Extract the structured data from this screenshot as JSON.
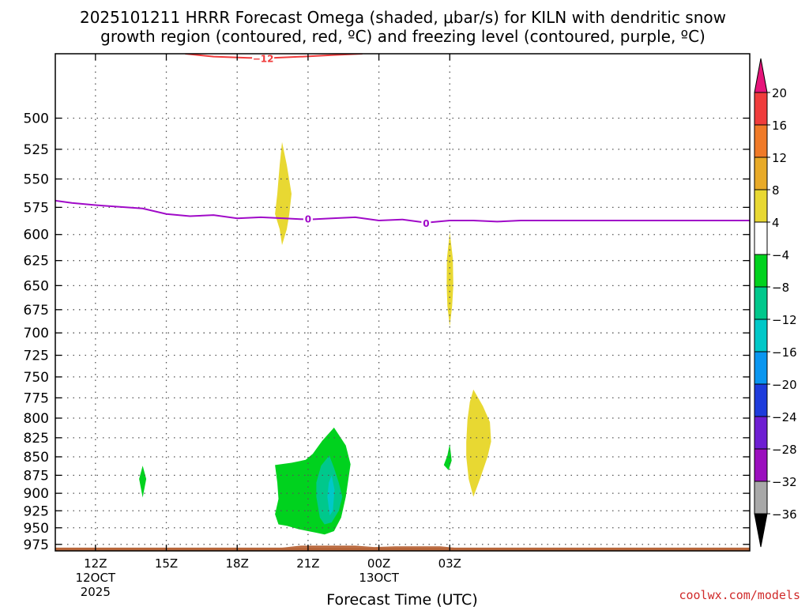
{
  "chart_data": {
    "type": "contour",
    "title_line1": "2025101211 HRRR Forecast Omega (shaded, μbar/s) for KILN with dendritic snow",
    "title_line2": "growth region (contoured, red, ºC) and freezing level (contoured, purple, ºC)",
    "xlabel": "Forecast Time (UTC)",
    "credit": "coolwx.com/models",
    "x_range_hours": [
      10.3,
      39.7
    ],
    "y_range_hPa": [
      452,
      985
    ],
    "y_ticks": [
      500,
      525,
      550,
      575,
      600,
      625,
      650,
      675,
      700,
      725,
      750,
      775,
      800,
      825,
      850,
      875,
      900,
      925,
      950,
      975
    ],
    "x_ticks": [
      {
        "hour": 12,
        "label": "12Z",
        "sub1": "12OCT",
        "sub2": "2025"
      },
      {
        "hour": 15,
        "label": "15Z",
        "sub1": "",
        "sub2": ""
      },
      {
        "hour": 18,
        "label": "18Z",
        "sub1": "",
        "sub2": ""
      },
      {
        "hour": 21,
        "label": "21Z",
        "sub1": "",
        "sub2": ""
      },
      {
        "hour": 24,
        "label": "00Z",
        "sub1": "13OCT",
        "sub2": ""
      },
      {
        "hour": 27,
        "label": "03Z",
        "sub1": "",
        "sub2": ""
      }
    ],
    "colorbar": {
      "labels": [
        "20",
        "16",
        "12",
        "8",
        "4",
        "−4",
        "−8",
        "−12",
        "−16",
        "−20",
        "−24",
        "−28",
        "−32",
        "−36"
      ],
      "colors": [
        "#f03c3c",
        "#f07a28",
        "#e8aa28",
        "#e8d832",
        "#ffffff",
        "#00d21e",
        "#00c88c",
        "#00c8c8",
        "#0a96f0",
        "#1e3cdc",
        "#6e1ed2",
        "#9b0fbe",
        "#a8a8a8"
      ],
      "top_arrow_color": "#e6147a",
      "bottom_arrow_color": "#000000"
    },
    "freezing_level": {
      "label": "0",
      "color": "#a00ac8",
      "points": [
        [
          10.3,
          569
        ],
        [
          11.0,
          571
        ],
        [
          12.0,
          573
        ],
        [
          14.0,
          576
        ],
        [
          15.0,
          581
        ],
        [
          16.0,
          583
        ],
        [
          17.0,
          582
        ],
        [
          18.0,
          585
        ],
        [
          19.0,
          584
        ],
        [
          20.0,
          585
        ],
        [
          21.0,
          586
        ],
        [
          22.0,
          585
        ],
        [
          23.0,
          584
        ],
        [
          24.0,
          587
        ],
        [
          25.0,
          586
        ],
        [
          26.0,
          589
        ],
        [
          27.0,
          587
        ],
        [
          28.0,
          587
        ],
        [
          29.0,
          588
        ],
        [
          30.0,
          587
        ],
        [
          39.7,
          587
        ]
      ],
      "label_points": [
        [
          21.0,
          585
        ],
        [
          26.0,
          589
        ]
      ]
    },
    "dgz_contour": {
      "label": "−12",
      "color": "#f03c3c",
      "points": [
        [
          15.8,
          452
        ],
        [
          17.0,
          454
        ],
        [
          18.5,
          455
        ],
        [
          19.5,
          455
        ],
        [
          20.8,
          454
        ],
        [
          22.0,
          453
        ],
        [
          23.3,
          452
        ]
      ],
      "label_point": [
        19.1,
        455
      ]
    },
    "omega_regions": [
      {
        "level": "4 to 8",
        "color": "#e8d832",
        "points": [
          [
            19.9,
            519
          ],
          [
            20.1,
            538
          ],
          [
            20.3,
            563
          ],
          [
            20.2,
            582
          ],
          [
            20.1,
            595
          ],
          [
            19.9,
            610
          ],
          [
            19.8,
            595
          ],
          [
            19.6,
            581
          ],
          [
            19.7,
            563
          ],
          [
            19.8,
            538
          ]
        ]
      },
      {
        "level": "4 to 8",
        "color": "#e8d832",
        "points": [
          [
            27.0,
            598
          ],
          [
            27.13,
            623
          ],
          [
            27.15,
            650
          ],
          [
            27.1,
            671
          ],
          [
            27.0,
            693
          ],
          [
            26.9,
            671
          ],
          [
            26.87,
            650
          ],
          [
            26.88,
            623
          ]
        ]
      },
      {
        "level": "4 to 8",
        "color": "#e8d832",
        "points": [
          [
            28.0,
            765
          ],
          [
            28.4,
            785
          ],
          [
            28.7,
            805
          ],
          [
            28.75,
            830
          ],
          [
            28.6,
            850
          ],
          [
            28.3,
            878
          ],
          [
            28.0,
            905
          ],
          [
            27.8,
            880
          ],
          [
            27.7,
            850
          ],
          [
            27.7,
            830
          ],
          [
            27.75,
            802
          ],
          [
            27.85,
            780
          ]
        ]
      },
      {
        "level": "-4 to -8",
        "color": "#00d21e",
        "points": [
          [
            14.0,
            862
          ],
          [
            14.15,
            880
          ],
          [
            14.0,
            906
          ],
          [
            13.85,
            880
          ]
        ]
      },
      {
        "level": "-4 to -8",
        "color": "#00d21e",
        "points": [
          [
            27.0,
            833
          ],
          [
            27.08,
            855
          ],
          [
            26.95,
            868
          ],
          [
            26.75,
            861
          ],
          [
            26.9,
            848
          ]
        ]
      },
      {
        "level": "-4 to -8",
        "color": "#00d21e",
        "points": [
          [
            19.6,
            861
          ],
          [
            20.3,
            858
          ],
          [
            20.9,
            854
          ],
          [
            21.2,
            846
          ],
          [
            21.6,
            829
          ],
          [
            22.1,
            812
          ],
          [
            22.6,
            835
          ],
          [
            22.8,
            860
          ],
          [
            22.6,
            905
          ],
          [
            22.4,
            935
          ],
          [
            22.1,
            955
          ],
          [
            21.7,
            960
          ],
          [
            21.3,
            957
          ],
          [
            21.0,
            955
          ],
          [
            20.6,
            952
          ],
          [
            20.1,
            947
          ],
          [
            19.75,
            945
          ],
          [
            19.6,
            930
          ],
          [
            19.75,
            908
          ],
          [
            19.7,
            885
          ]
        ]
      },
      {
        "level": "-8 to -12",
        "color": "#00c88c",
        "points": [
          [
            21.9,
            848
          ],
          [
            22.1,
            865
          ],
          [
            22.3,
            885
          ],
          [
            22.45,
            905
          ],
          [
            22.3,
            925
          ],
          [
            22.0,
            942
          ],
          [
            21.7,
            945
          ],
          [
            21.5,
            935
          ],
          [
            21.35,
            905
          ],
          [
            21.35,
            885
          ],
          [
            21.55,
            862
          ]
        ]
      },
      {
        "level": "-12 to -16",
        "color": "#00c8c8",
        "points": [
          [
            22.0,
            875
          ],
          [
            22.12,
            895
          ],
          [
            22.05,
            925
          ],
          [
            21.92,
            932
          ],
          [
            21.82,
            905
          ],
          [
            21.88,
            885
          ]
        ]
      }
    ],
    "surface_strips": [
      {
        "color": "#b8663a",
        "points": [
          [
            10.3,
            980
          ],
          [
            39.7,
            980
          ],
          [
            39.7,
            985
          ],
          [
            10.3,
            985
          ]
        ]
      },
      {
        "color": "#b8663a",
        "points": [
          [
            19.9,
            980
          ],
          [
            20.7,
            977
          ],
          [
            23.0,
            977
          ],
          [
            23.8,
            979
          ],
          [
            24.7,
            978
          ],
          [
            26.6,
            978
          ],
          [
            27.2,
            980
          ]
        ]
      }
    ]
  }
}
